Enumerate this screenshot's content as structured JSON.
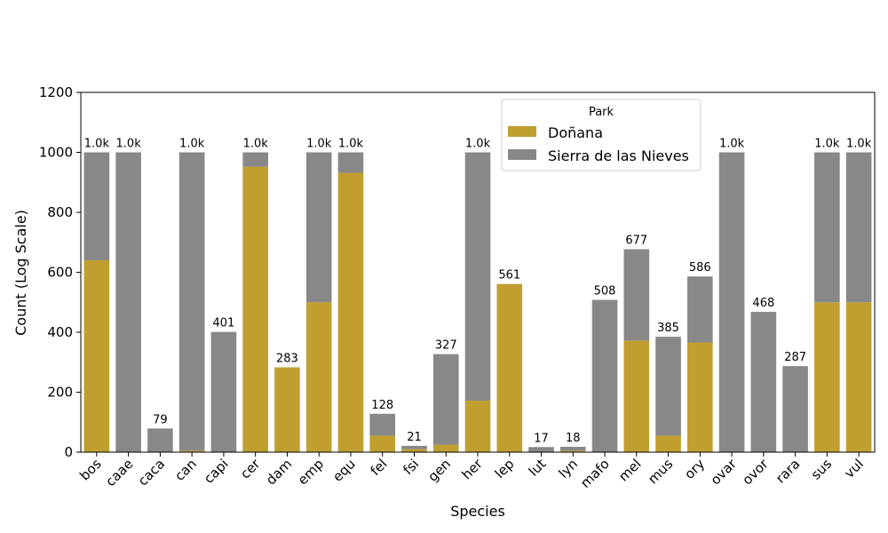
{
  "chart_data": {
    "type": "bar",
    "stacked": true,
    "title": "",
    "xlabel": "Species",
    "ylabel": "Count (Log Scale)",
    "ylim": [
      0,
      1200
    ],
    "yticks": [
      0,
      200,
      400,
      600,
      800,
      1000,
      1200
    ],
    "grid": false,
    "legend": {
      "title": "Park",
      "placement": "top-right"
    },
    "categories": [
      "bos",
      "caae",
      "caca",
      "can",
      "capi",
      "cer",
      "dam",
      "emp",
      "equ",
      "fel",
      "fsi",
      "gen",
      "her",
      "lep",
      "lut",
      "lyn",
      "mafo",
      "mel",
      "mus",
      "ory",
      "ovar",
      "ovor",
      "rara",
      "sus",
      "vul"
    ],
    "series": [
      {
        "name": "Doñana",
        "color": "#c09f30",
        "values": [
          640,
          0,
          0,
          5,
          0,
          952,
          283,
          500,
          932,
          55,
          10,
          25,
          172,
          561,
          0,
          5,
          0,
          372,
          55,
          366,
          0,
          0,
          0,
          500,
          500
        ]
      },
      {
        "name": "Sierra de las Nieves",
        "color": "#888888",
        "values": [
          360,
          1000,
          79,
          995,
          401,
          48,
          0,
          500,
          68,
          73,
          11,
          302,
          828,
          0,
          17,
          13,
          508,
          305,
          330,
          220,
          1000,
          468,
          287,
          500,
          500
        ]
      }
    ],
    "total_labels": [
      "1.0k",
      "1.0k",
      "79",
      "1.0k",
      "401",
      "1.0k",
      "283",
      "1.0k",
      "1.0k",
      "128",
      "21",
      "327",
      "1.0k",
      "561",
      "17",
      "18",
      "508",
      "677",
      "385",
      "586",
      "1.0k",
      "468",
      "287",
      "1.0k",
      "1.0k"
    ]
  }
}
